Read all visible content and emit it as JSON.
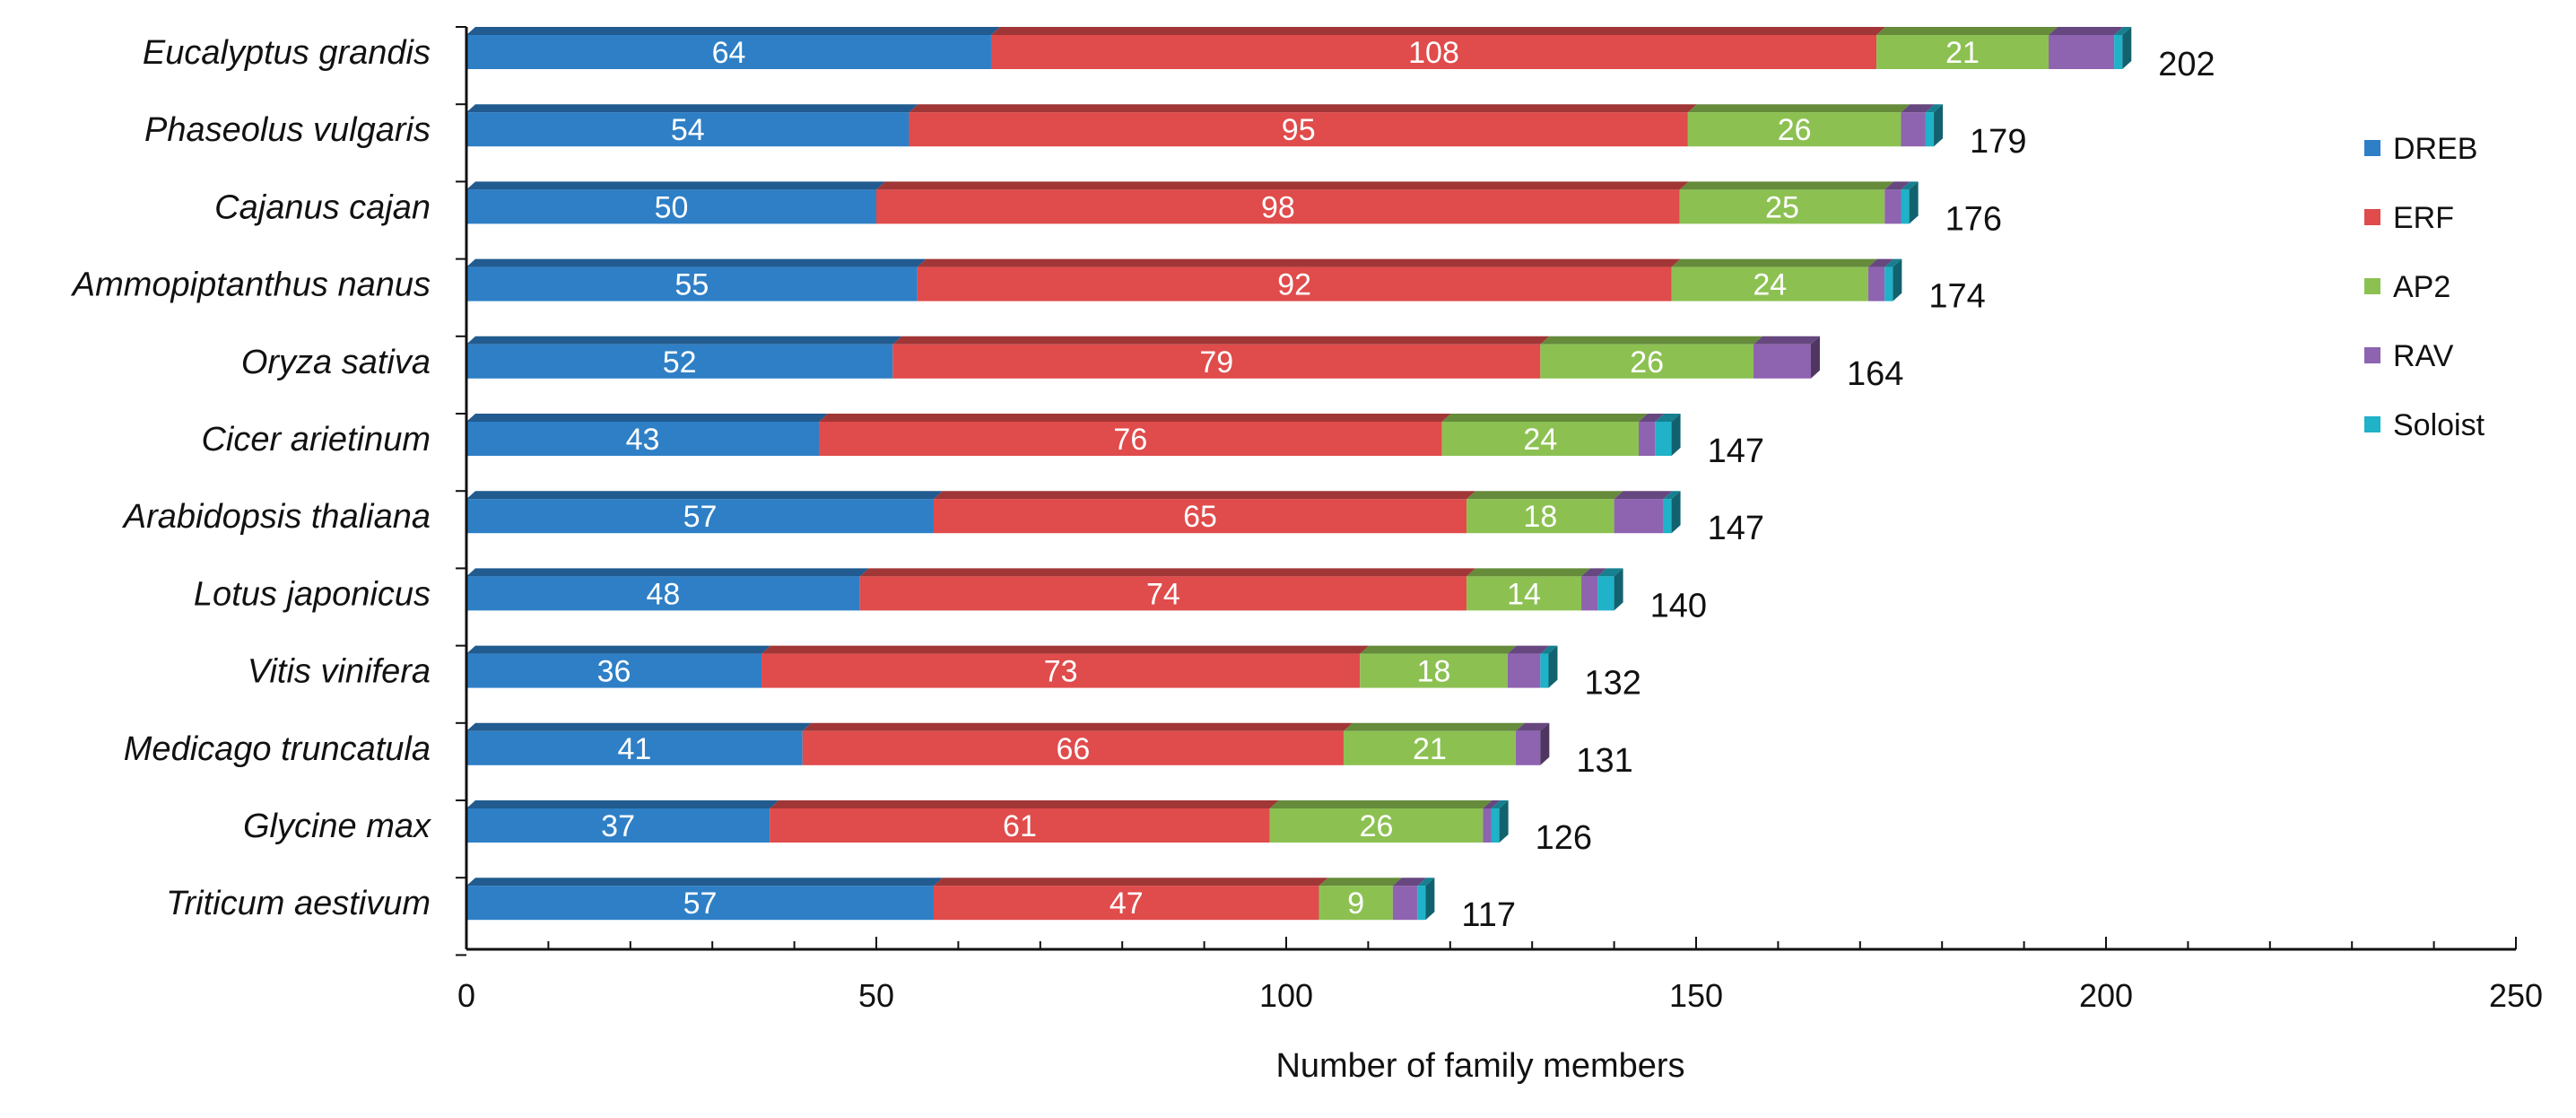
{
  "chart_data": {
    "type": "bar",
    "orientation": "horizontal",
    "stacked": true,
    "categories": [
      "Eucalyptus grandis",
      "Phaseolus vulgaris",
      "Cajanus cajan",
      "Ammopiptanthus nanus",
      "Oryza sativa",
      "Cicer arietinum",
      "Arabidopsis thaliana",
      "Lotus japonicus",
      "Vitis vinifera",
      "Medicago truncatula",
      "Glycine max",
      "Triticum aestivum"
    ],
    "series": [
      {
        "name": "DREB",
        "color": "#2e7fc6",
        "values": [
          64,
          54,
          50,
          55,
          52,
          43,
          57,
          48,
          36,
          41,
          37,
          57
        ]
      },
      {
        "name": "ERF",
        "color": "#e04b4b",
        "values": [
          108,
          95,
          98,
          92,
          79,
          76,
          65,
          74,
          73,
          66,
          61,
          47
        ]
      },
      {
        "name": "AP2",
        "color": "#8cc152",
        "values": [
          21,
          26,
          25,
          24,
          26,
          24,
          18,
          14,
          18,
          21,
          26,
          9
        ]
      },
      {
        "name": "RAV",
        "color": "#8e63b0",
        "values": [
          8,
          3,
          2,
          2,
          7,
          2,
          6,
          2,
          4,
          3,
          1,
          3
        ]
      },
      {
        "name": "Soloist",
        "color": "#1fb2c8",
        "values": [
          1,
          1,
          1,
          1,
          0,
          2,
          1,
          2,
          1,
          0,
          1,
          1
        ]
      }
    ],
    "segment_labels_shown": [
      "DREB",
      "ERF",
      "AP2"
    ],
    "totals": [
      202,
      179,
      176,
      174,
      164,
      147,
      147,
      140,
      132,
      131,
      126,
      117
    ],
    "xlabel": "Number of family members",
    "ylabel": "",
    "xlim": [
      0,
      250
    ],
    "xticks": [
      0,
      50,
      100,
      150,
      200,
      250
    ],
    "legend_position": "right",
    "grid": false
  }
}
